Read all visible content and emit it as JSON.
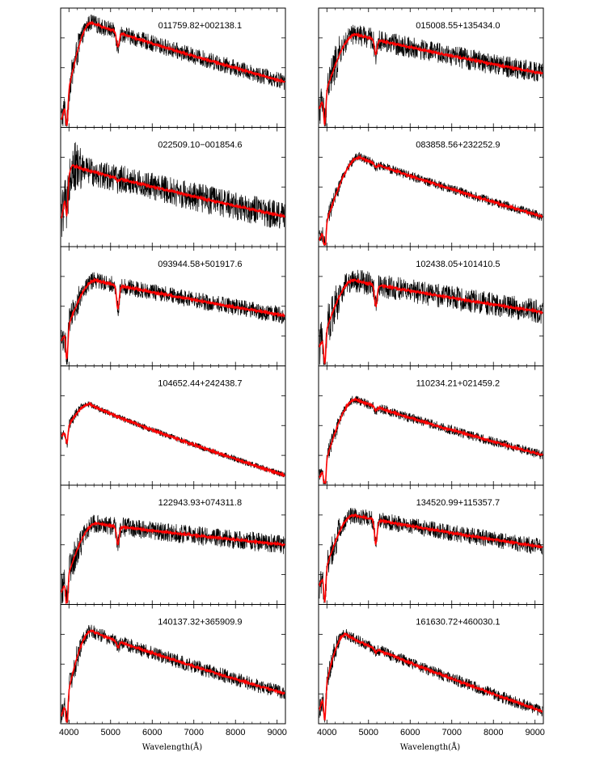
{
  "figure": {
    "xlabel": "Wavelength(Å)",
    "colors": {
      "observed": "#000000",
      "model": "#ff0000",
      "frame": "#000000"
    }
  },
  "chart_data": [
    {
      "type": "line",
      "title": "011759.82+002138.1",
      "xlim": [
        3800,
        9200
      ],
      "xticks": [
        4000,
        5000,
        6000,
        7000,
        8000,
        9000
      ],
      "series": [
        {
          "role": "observed",
          "noise": 0.07
        },
        {
          "role": "model"
        }
      ],
      "shape": {
        "peak_x": 4550,
        "peak_y": 0.88,
        "dip_x": 3950,
        "dip_y": 0.05,
        "dip5175": 0.12,
        "end_y": 0.38,
        "mid_y": 0.6
      }
    },
    {
      "type": "line",
      "title": "015008.55+135434.0",
      "xlim": [
        3800,
        9200
      ],
      "xticks": [
        4000,
        5000,
        6000,
        7000,
        8000,
        9000
      ],
      "series": [
        {
          "role": "observed",
          "noise": 0.09
        },
        {
          "role": "model"
        }
      ],
      "shape": {
        "peak_x": 4700,
        "peak_y": 0.78,
        "dip_x": 3950,
        "dip_y": 0.15,
        "dip5175": 0.12,
        "end_y": 0.45,
        "mid_y": 0.62
      }
    },
    {
      "type": "line",
      "title": "022509.10−001854.6",
      "xlim": [
        3800,
        9200
      ],
      "xticks": [
        4000,
        5000,
        6000,
        7000,
        8000,
        9000
      ],
      "series": [
        {
          "role": "observed",
          "noise": 0.12
        },
        {
          "role": "model"
        }
      ],
      "shape": {
        "peak_x": 4100,
        "peak_y": 0.68,
        "dip_x": 3950,
        "dip_y": 0.2,
        "dip5175": 0.02,
        "end_y": 0.25,
        "mid_y": 0.45
      }
    },
    {
      "type": "line",
      "title": "083858.56+232252.9",
      "xlim": [
        3800,
        9200
      ],
      "xticks": [
        4000,
        5000,
        6000,
        7000,
        8000,
        9000
      ],
      "series": [
        {
          "role": "observed",
          "noise": 0.04
        },
        {
          "role": "model"
        }
      ],
      "shape": {
        "peak_x": 4800,
        "peak_y": 0.75,
        "dip_x": 3960,
        "dip_y": 0.05,
        "dip5175": 0.03,
        "end_y": 0.25,
        "mid_y": 0.52
      }
    },
    {
      "type": "line",
      "title": "093944.58+501917.6",
      "xlim": [
        3800,
        9200
      ],
      "xticks": [
        4000,
        5000,
        6000,
        7000,
        8000,
        9000
      ],
      "series": [
        {
          "role": "observed",
          "noise": 0.07
        },
        {
          "role": "model"
        }
      ],
      "shape": {
        "peak_x": 4650,
        "peak_y": 0.72,
        "dip_x": 3950,
        "dip_y": 0.2,
        "dip5175": 0.2,
        "end_y": 0.42,
        "mid_y": 0.58
      }
    },
    {
      "type": "line",
      "title": "102438.05+101410.5",
      "xlim": [
        3800,
        9200
      ],
      "xticks": [
        4000,
        5000,
        6000,
        7000,
        8000,
        9000
      ],
      "series": [
        {
          "role": "observed",
          "noise": 0.1
        },
        {
          "role": "model"
        }
      ],
      "shape": {
        "peak_x": 4650,
        "peak_y": 0.72,
        "dip_x": 3950,
        "dip_y": 0.15,
        "dip5175": 0.18,
        "end_y": 0.45,
        "mid_y": 0.6
      }
    },
    {
      "type": "line",
      "title": "104652.44+242438.7",
      "xlim": [
        3800,
        9200
      ],
      "xticks": [
        4000,
        5000,
        6000,
        7000,
        8000,
        9000
      ],
      "series": [
        {
          "role": "observed",
          "noise": 0.025
        },
        {
          "role": "model"
        }
      ],
      "shape": {
        "peak_x": 4500,
        "peak_y": 0.68,
        "dip_x": 3950,
        "dip_y": 0.4,
        "dip5175": 0.0,
        "end_y": 0.08,
        "mid_y": 0.4
      }
    },
    {
      "type": "line",
      "title": "110234.21+021459.2",
      "xlim": [
        3800,
        9200
      ],
      "xticks": [
        4000,
        5000,
        6000,
        7000,
        8000,
        9000
      ],
      "series": [
        {
          "role": "observed",
          "noise": 0.04
        },
        {
          "role": "model"
        }
      ],
      "shape": {
        "peak_x": 4700,
        "peak_y": 0.72,
        "dip_x": 3960,
        "dip_y": 0.05,
        "dip5175": 0.03,
        "end_y": 0.25,
        "mid_y": 0.5
      }
    },
    {
      "type": "line",
      "title": "122943.93+074311.8",
      "xlim": [
        3800,
        9200
      ],
      "xticks": [
        4000,
        5000,
        6000,
        7000,
        8000,
        9000
      ],
      "series": [
        {
          "role": "observed",
          "noise": 0.08
        },
        {
          "role": "model"
        }
      ],
      "shape": {
        "peak_x": 4650,
        "peak_y": 0.68,
        "dip_x": 3950,
        "dip_y": 0.1,
        "dip5175": 0.15,
        "end_y": 0.5,
        "mid_y": 0.55
      }
    },
    {
      "type": "line",
      "title": "134520.99+115357.7",
      "xlim": [
        3800,
        9200
      ],
      "xticks": [
        4000,
        5000,
        6000,
        7000,
        8000,
        9000
      ],
      "series": [
        {
          "role": "observed",
          "noise": 0.07
        },
        {
          "role": "model"
        }
      ],
      "shape": {
        "peak_x": 4650,
        "peak_y": 0.75,
        "dip_x": 3950,
        "dip_y": 0.15,
        "dip5175": 0.2,
        "end_y": 0.48,
        "mid_y": 0.58
      }
    },
    {
      "type": "line",
      "title": "140137.32+365909.9",
      "xlim": [
        3800,
        9200
      ],
      "xticks": [
        4000,
        5000,
        6000,
        7000,
        8000,
        9000
      ],
      "series": [
        {
          "role": "observed",
          "noise": 0.06
        },
        {
          "role": "model"
        }
      ],
      "shape": {
        "peak_x": 4550,
        "peak_y": 0.78,
        "dip_x": 3950,
        "dip_y": 0.05,
        "dip5175": 0.05,
        "end_y": 0.25,
        "mid_y": 0.55
      }
    },
    {
      "type": "line",
      "title": "161630.72+460030.1",
      "xlim": [
        3800,
        9200
      ],
      "xticks": [
        4000,
        5000,
        6000,
        7000,
        8000,
        9000
      ],
      "series": [
        {
          "role": "observed",
          "noise": 0.05
        },
        {
          "role": "model"
        }
      ],
      "shape": {
        "peak_x": 4450,
        "peak_y": 0.75,
        "dip_x": 3950,
        "dip_y": 0.1,
        "dip5175": 0.03,
        "end_y": 0.1,
        "mid_y": 0.45
      }
    }
  ]
}
